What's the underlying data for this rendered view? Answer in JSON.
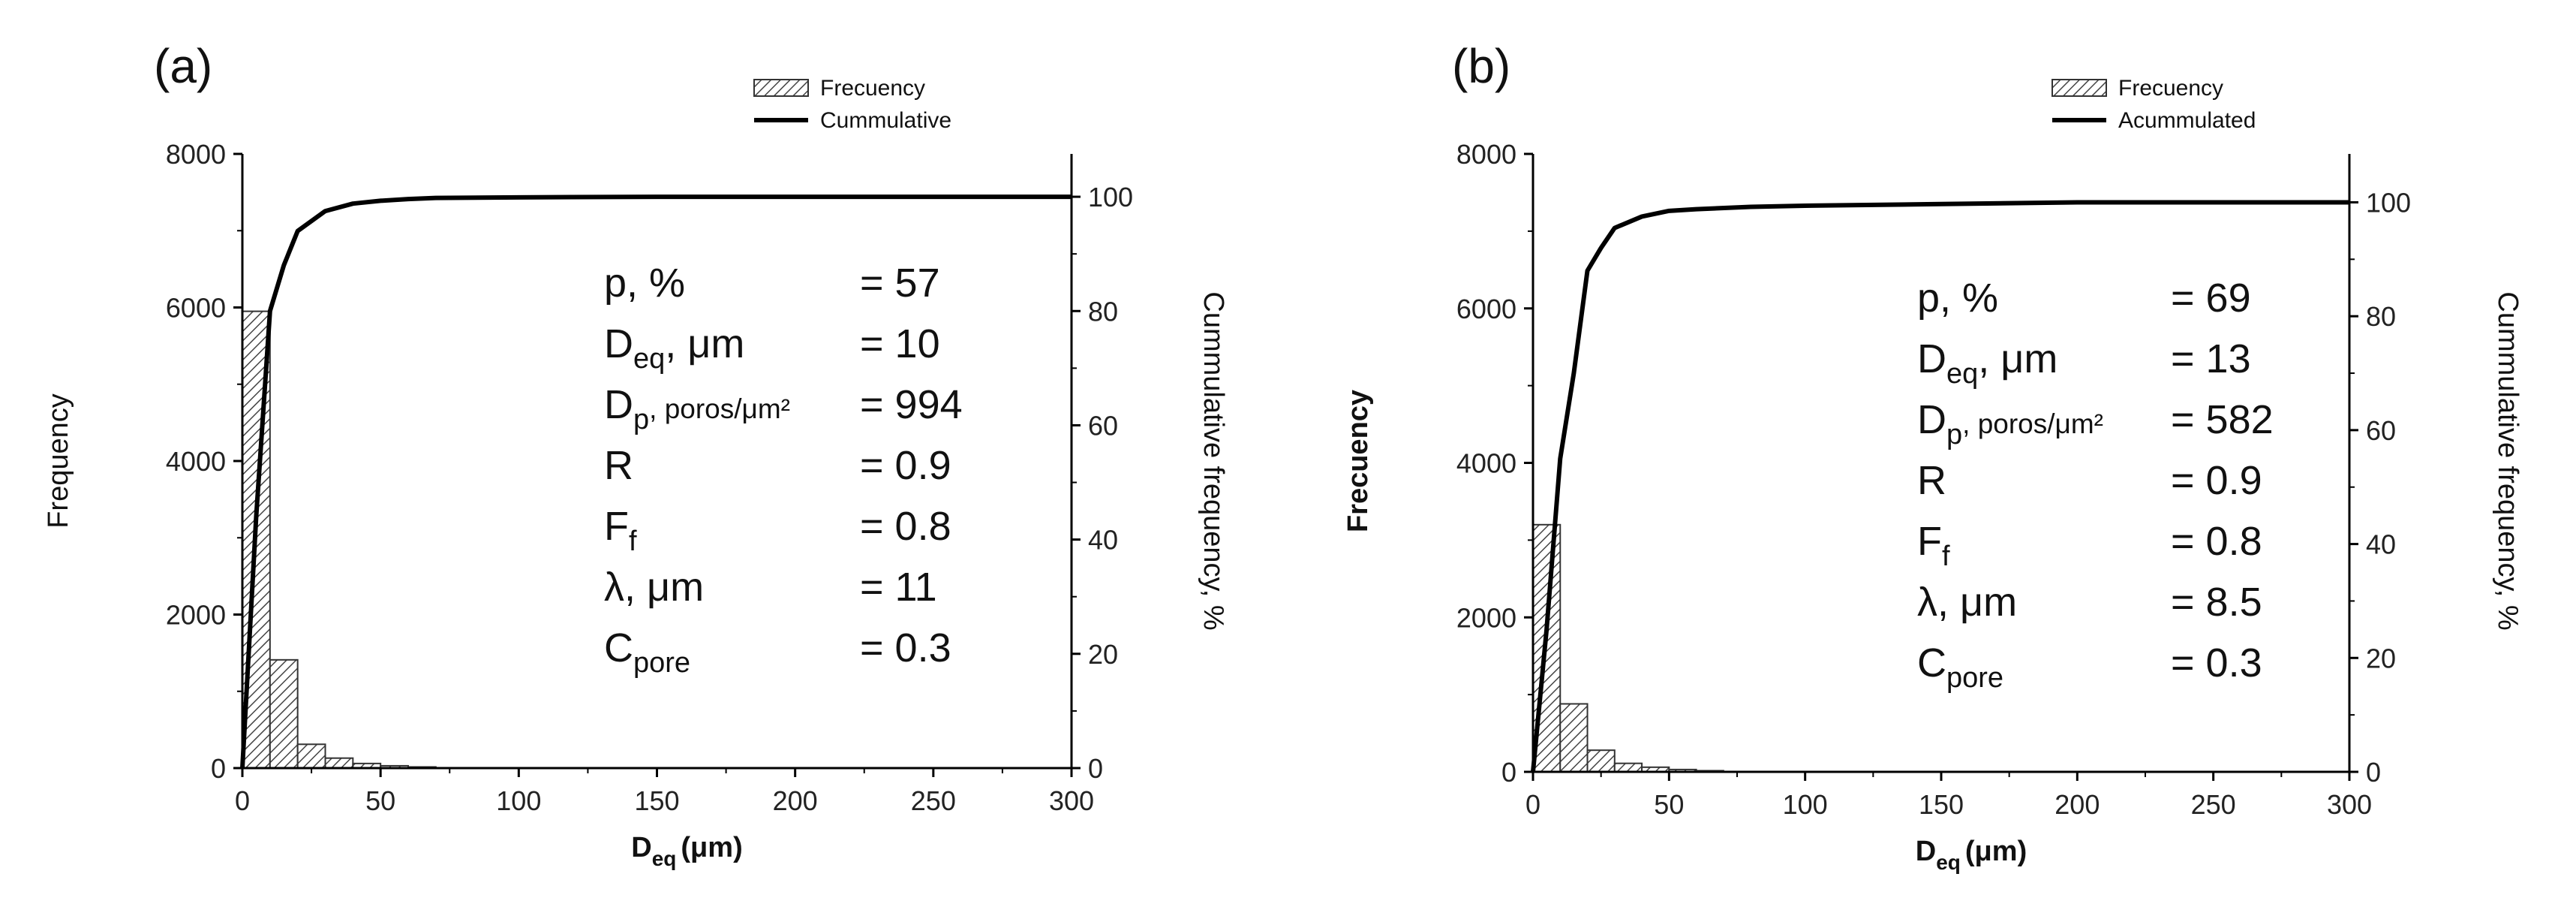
{
  "chart_data": [
    {
      "panel_label": "(a)",
      "type": "bar",
      "title": "",
      "xlabel": {
        "main": "D",
        "sub": "eq",
        "unit": "(μm)"
      },
      "ylabel": "Frequency",
      "y2label": "Cummulative frequency, %",
      "xlim": [
        0,
        300
      ],
      "ylim": [
        0,
        8000
      ],
      "y2lim": [
        0,
        107.5
      ],
      "xticks": [
        0,
        50,
        100,
        150,
        200,
        250,
        300
      ],
      "yticks": [
        0,
        2000,
        4000,
        6000,
        8000
      ],
      "y2ticks": [
        0,
        20,
        40,
        60,
        80,
        100
      ],
      "legend": {
        "position": "top-right",
        "bar": "Frecuency",
        "line": "Cummulative"
      },
      "histogram": {
        "bin_width": 10,
        "bins": [
          0,
          10,
          20,
          30,
          40,
          50,
          60
        ],
        "frequency": [
          5950,
          1410,
          310,
          130,
          60,
          30,
          15
        ]
      },
      "cumulative": {
        "x": [
          0,
          5,
          10,
          15,
          20,
          30,
          40,
          50,
          60,
          70,
          100,
          150,
          200,
          250,
          300
        ],
        "y": [
          0,
          44,
          80,
          88,
          94,
          97.5,
          98.8,
          99.3,
          99.6,
          99.8,
          99.9,
          100,
          100,
          100,
          100
        ]
      },
      "stats": [
        {
          "label": "p, %",
          "value": "= 57"
        },
        {
          "label": "D",
          "sub": "eq",
          "unit": ", μm",
          "value": "= 10"
        },
        {
          "label": "D",
          "sub": "p",
          "unit": ",  poros/μm²",
          "value": "= 994"
        },
        {
          "label": "R",
          "value": "= 0.9"
        },
        {
          "label": "F",
          "sub": "f",
          "value": "= 0.8"
        },
        {
          "label": "λ, μm",
          "value": "= 11"
        },
        {
          "label": "C",
          "sub": "pore",
          "value": "= 0.3"
        }
      ]
    },
    {
      "panel_label": "(b)",
      "type": "bar",
      "title": "",
      "xlabel": {
        "main": "D",
        "sub": "eq",
        "unit": "(μm)"
      },
      "ylabel": "Frecuency",
      "y2label": "Cummulative frequency, %",
      "xlim": [
        0,
        300
      ],
      "ylim": [
        0,
        8000
      ],
      "y2lim": [
        0,
        108.5
      ],
      "xticks": [
        0,
        50,
        100,
        150,
        200,
        250,
        300
      ],
      "yticks": [
        0,
        2000,
        4000,
        6000,
        8000
      ],
      "y2ticks": [
        0,
        20,
        40,
        60,
        80,
        100
      ],
      "legend": {
        "position": "top-right",
        "bar": "Frecuency",
        "line": "Acummulated"
      },
      "histogram": {
        "bin_width": 10,
        "bins": [
          0,
          10,
          20,
          30,
          40,
          50,
          60
        ],
        "frequency": [
          3200,
          880,
          280,
          110,
          60,
          30,
          15
        ]
      },
      "cumulative": {
        "x": [
          0,
          5,
          10,
          15,
          20,
          25,
          30,
          40,
          50,
          60,
          80,
          100,
          150,
          200,
          250,
          300
        ],
        "y": [
          0,
          25,
          55,
          70,
          88,
          92,
          95.5,
          97.5,
          98.5,
          98.8,
          99.2,
          99.4,
          99.7,
          100,
          100,
          100
        ]
      },
      "stats": [
        {
          "label": "p, %",
          "value": "= 69"
        },
        {
          "label": "D",
          "sub": "eq",
          "unit": ", μm",
          "value": "= 13"
        },
        {
          "label": "D",
          "sub": "p",
          "unit": ",  poros/μm²",
          "value": "= 582"
        },
        {
          "label": "R",
          "value": "= 0.9"
        },
        {
          "label": "F",
          "sub": "f",
          "value": "= 0.8"
        },
        {
          "label": "λ, μm",
          "value": "= 8.5"
        },
        {
          "label": "C",
          "sub": "pore",
          "value": "= 0.3"
        }
      ]
    }
  ]
}
